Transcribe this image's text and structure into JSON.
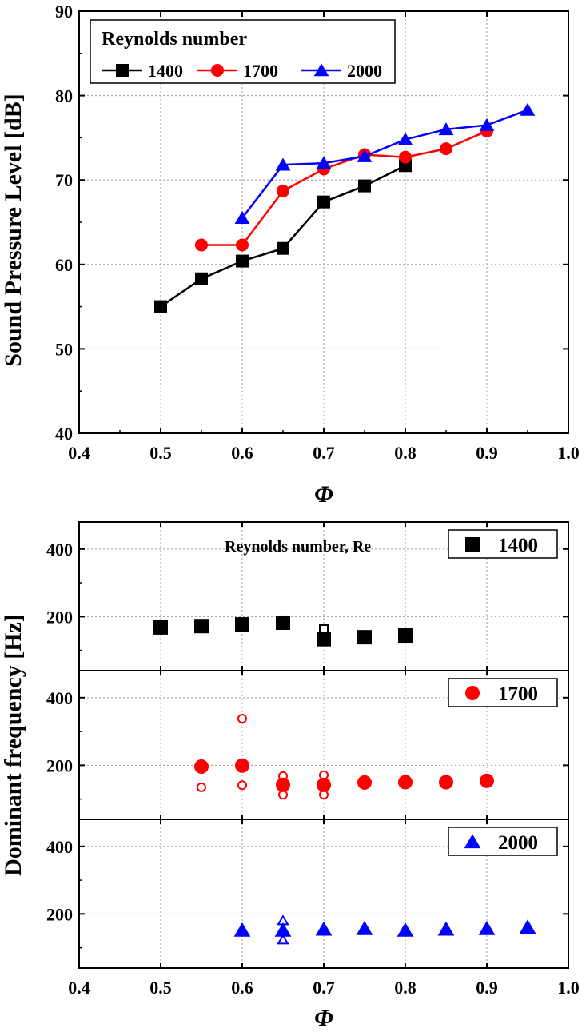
{
  "chart_data": [
    {
      "type": "line",
      "ylabel": "Sound Pressure Level [dB]",
      "xlabel": "Φ",
      "xlim": [
        0.4,
        1.0
      ],
      "ylim": [
        40,
        90
      ],
      "x_ticks": [
        "0.4",
        "0.5",
        "0.6",
        "0.7",
        "0.8",
        "0.9",
        "1.0"
      ],
      "y_ticks": [
        "40",
        "50",
        "60",
        "70",
        "80",
        "90"
      ],
      "grid": true,
      "legend": {
        "title": "Reynolds number",
        "position": "top-left"
      },
      "series": [
        {
          "name": "1400",
          "color": "#000000",
          "marker": "square",
          "x": [
            0.5,
            0.55,
            0.6,
            0.65,
            0.7,
            0.75,
            0.8
          ],
          "y": [
            55.0,
            58.3,
            60.4,
            61.9,
            67.4,
            69.3,
            71.7
          ]
        },
        {
          "name": "1700",
          "color": "#ff0000",
          "marker": "circle",
          "x": [
            0.55,
            0.6,
            0.65,
            0.7,
            0.75,
            0.8,
            0.85,
            0.9
          ],
          "y": [
            62.3,
            62.3,
            68.7,
            71.3,
            73.0,
            72.7,
            73.7,
            75.8
          ]
        },
        {
          "name": "2000",
          "color": "#0000ff",
          "marker": "triangle",
          "x": [
            0.6,
            0.65,
            0.7,
            0.75,
            0.8,
            0.85,
            0.9,
            0.95
          ],
          "y": [
            65.5,
            71.8,
            72.0,
            72.8,
            74.8,
            76.0,
            76.5,
            78.3
          ]
        }
      ]
    },
    {
      "type": "scatter",
      "ylabel": "Dominant frequency [Hz]",
      "xlabel": "Φ",
      "xlim": [
        0.4,
        1.0
      ],
      "x_ticks": [
        "0.4",
        "0.5",
        "0.6",
        "0.7",
        "0.8",
        "0.9",
        "1.0"
      ],
      "grid": true,
      "annotation": "Reynolds number, Re",
      "panels": [
        {
          "name": "1400",
          "color": "#000000",
          "marker": "square",
          "y_ticks": [
            "200",
            "400"
          ],
          "ylim": [
            40,
            480
          ],
          "x": [
            0.5,
            0.55,
            0.6,
            0.65,
            0.7,
            0.75,
            0.8
          ],
          "y": [
            168,
            172,
            177,
            182,
            133,
            139,
            144
          ],
          "secondary_x": [
            0.7
          ],
          "secondary_y": [
            163
          ]
        },
        {
          "name": "1700",
          "color": "#ff0000",
          "marker": "circle",
          "y_ticks": [
            "200",
            "400"
          ],
          "ylim": [
            40,
            480
          ],
          "x": [
            0.55,
            0.6,
            0.65,
            0.7,
            0.75,
            0.8,
            0.85,
            0.9
          ],
          "y": [
            196,
            199,
            142,
            142,
            149,
            150,
            150,
            154
          ],
          "secondary_x": [
            0.55,
            0.6,
            0.6,
            0.65,
            0.65,
            0.7,
            0.7
          ],
          "secondary_y": [
            135,
            141,
            338,
            168,
            113,
            171,
            113
          ]
        },
        {
          "name": "2000",
          "color": "#0000ff",
          "marker": "triangle",
          "y_ticks": [
            "200",
            "400"
          ],
          "ylim": [
            40,
            480
          ],
          "x": [
            0.6,
            0.65,
            0.7,
            0.75,
            0.8,
            0.85,
            0.9,
            0.95
          ],
          "y": [
            152,
            152,
            155,
            157,
            152,
            155,
            157,
            161
          ],
          "secondary_x": [
            0.65,
            0.65
          ],
          "secondary_y": [
            180,
            123
          ]
        }
      ]
    }
  ]
}
